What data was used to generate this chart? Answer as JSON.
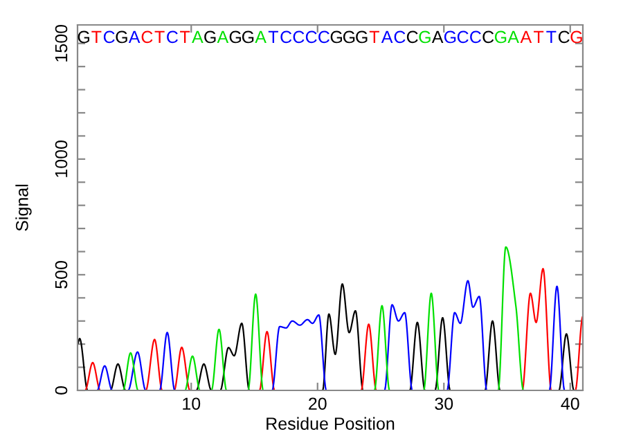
{
  "chart_data": {
    "type": "line",
    "xlabel": "Residue Position",
    "ylabel": "Signal",
    "xlim": [
      1,
      41
    ],
    "xticks": [
      10,
      20,
      30,
      40
    ],
    "ylim": [
      0,
      1580
    ],
    "yticks": [
      0,
      {
        "value": 100,
        "label": null
      },
      {
        "value": 200,
        "label": null
      },
      {
        "value": 300,
        "label": null
      },
      {
        "value": 400,
        "label": null
      },
      500,
      {
        "value": 600,
        "label": null
      },
      {
        "value": 700,
        "label": null
      },
      {
        "value": 800,
        "label": null
      },
      {
        "value": 900,
        "label": null
      },
      1000,
      {
        "value": 1100,
        "label": null
      },
      {
        "value": 1200,
        "label": null
      },
      {
        "value": 1300,
        "label": null
      },
      {
        "value": 1400,
        "label": null
      },
      1500
    ],
    "grid": false,
    "legend": false,
    "marker": "none",
    "line_style": "solid",
    "annotations": [
      "GTCGACTCTAGAGGATCCCCGGGTACCGAGCCCGAATTCG"
    ],
    "series": [
      {
        "color": "#000000",
        "x": [
          1,
          1.17,
          1.8,
          3.6,
          4.2,
          4.8,
          10.4,
          11.0,
          11.6,
          12.3,
          12.95,
          13.4,
          14.0,
          14.6,
          20.4,
          20.9,
          21.4,
          21.96,
          22.5,
          23.0,
          23.6,
          27.3,
          27.9,
          28.5,
          29.3,
          29.9,
          30.5,
          33.25,
          33.85,
          34.45,
          39.1,
          39.7,
          40.3,
          41
        ],
        "values": [
          200,
          224,
          0,
          0,
          114,
          0,
          0,
          114,
          0,
          0,
          185,
          150,
          290,
          0,
          0,
          330,
          156,
          460,
          250,
          344,
          0,
          0,
          294,
          0,
          0,
          314,
          0,
          0,
          300,
          0,
          0,
          244,
          0,
          0
        ]
      },
      {
        "color": "#ff0000",
        "x": [
          1,
          1.6,
          2.2,
          2.8,
          6.4,
          7.1,
          7.7,
          8.65,
          9.25,
          9.9,
          15.4,
          16.0,
          16.6,
          23.45,
          24.05,
          24.65,
          36.2,
          36.85,
          37.3,
          37.85,
          38.5,
          40.4,
          41
        ],
        "values": [
          0,
          0,
          120,
          0,
          0,
          220,
          0,
          0,
          186,
          0,
          0,
          254,
          0,
          0,
          286,
          0,
          0,
          420,
          294,
          526,
          0,
          0,
          320
        ]
      },
      {
        "color": "#0000ff",
        "x": [
          1,
          2.55,
          3.15,
          3.75,
          5.0,
          5.75,
          6.4,
          7.5,
          8.1,
          8.7,
          16.4,
          17.0,
          17.5,
          18.0,
          18.6,
          19.2,
          19.6,
          20.1,
          20.7,
          25.3,
          25.9,
          26.4,
          26.9,
          27.5,
          30.25,
          30.85,
          31.3,
          31.9,
          32.3,
          32.8,
          33.4,
          38.35,
          38.95,
          39.55,
          41
        ],
        "values": [
          0,
          0,
          106,
          0,
          0,
          166,
          0,
          0,
          250,
          0,
          0,
          276,
          270,
          300,
          282,
          306,
          290,
          326,
          0,
          0,
          370,
          300,
          336,
          0,
          0,
          336,
          290,
          474,
          360,
          406,
          0,
          0,
          450,
          0,
          0
        ]
      },
      {
        "color": "#00e000",
        "x": [
          1,
          4.6,
          5.2,
          5.8,
          9.5,
          10.1,
          10.7,
          11.6,
          12.2,
          12.8,
          14.5,
          15.1,
          15.7,
          24.5,
          25.1,
          25.7,
          28.4,
          29.0,
          29.6,
          34.3,
          34.9,
          35.7,
          36.3,
          41
        ],
        "values": [
          0,
          0,
          162,
          0,
          0,
          148,
          0,
          0,
          264,
          0,
          0,
          416,
          0,
          0,
          366,
          0,
          0,
          420,
          0,
          0,
          620,
          364,
          0,
          0
        ]
      }
    ]
  }
}
